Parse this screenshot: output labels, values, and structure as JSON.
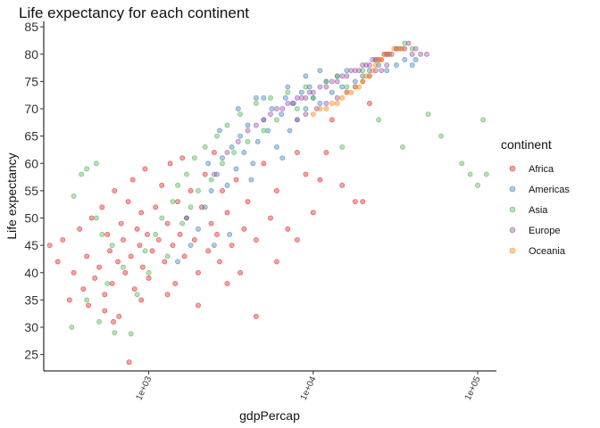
{
  "chart_data": {
    "type": "scatter",
    "title": "Life expectancy for each continent",
    "xlabel": "gdpPercap",
    "ylabel": "Life expectancy",
    "x_scale": "log10",
    "xlim": [
      230,
      130000
    ],
    "ylim": [
      22,
      86
    ],
    "x_ticks": [
      {
        "value": 1000,
        "label": "1e+03"
      },
      {
        "value": 10000,
        "label": "1e+04"
      },
      {
        "value": 100000,
        "label": "1e+05"
      }
    ],
    "y_ticks": [
      25,
      30,
      35,
      40,
      45,
      50,
      55,
      60,
      65,
      70,
      75,
      80,
      85
    ],
    "grid": false,
    "legend": {
      "title": "continent",
      "position": "right",
      "entries": [
        {
          "name": "Africa",
          "color": "#E41A1C"
        },
        {
          "name": "Americas",
          "color": "#377EB8"
        },
        {
          "name": "Asia",
          "color": "#4DAF4A"
        },
        {
          "name": "Europe",
          "color": "#984EA3"
        },
        {
          "name": "Oceania",
          "color": "#FF7F00"
        }
      ]
    },
    "point_opacity": 0.4,
    "series": [
      {
        "name": "Africa",
        "points": [
          [
            250,
            45
          ],
          [
            280,
            42
          ],
          [
            300,
            46
          ],
          [
            330,
            35
          ],
          [
            350,
            40
          ],
          [
            380,
            48
          ],
          [
            400,
            37
          ],
          [
            420,
            43
          ],
          [
            450,
            50
          ],
          [
            470,
            39
          ],
          [
            500,
            41
          ],
          [
            520,
            52
          ],
          [
            540,
            36
          ],
          [
            560,
            47
          ],
          [
            580,
            44
          ],
          [
            600,
            38
          ],
          [
            620,
            55
          ],
          [
            650,
            42
          ],
          [
            680,
            49
          ],
          [
            700,
            46
          ],
          [
            720,
            40
          ],
          [
            750,
            53
          ],
          [
            780,
            43
          ],
          [
            800,
            57
          ],
          [
            820,
            37
          ],
          [
            850,
            48
          ],
          [
            880,
            45
          ],
          [
            900,
            51
          ],
          [
            920,
            41
          ],
          [
            950,
            59
          ],
          [
            980,
            47
          ],
          [
            1000,
            39
          ],
          [
            1050,
            44
          ],
          [
            1100,
            52
          ],
          [
            1150,
            46
          ],
          [
            1200,
            56
          ],
          [
            1250,
            42
          ],
          [
            1300,
            49
          ],
          [
            1350,
            60
          ],
          [
            1400,
            45
          ],
          [
            1450,
            38
          ],
          [
            1500,
            53
          ],
          [
            1550,
            47
          ],
          [
            1600,
            61
          ],
          [
            1650,
            43
          ],
          [
            1700,
            50
          ],
          [
            1800,
            55
          ],
          [
            1900,
            46
          ],
          [
            2000,
            40
          ],
          [
            2100,
            52
          ],
          [
            2200,
            58
          ],
          [
            2300,
            44
          ],
          [
            2400,
            49
          ],
          [
            2500,
            62
          ],
          [
            2600,
            47
          ],
          [
            2700,
            42
          ],
          [
            2800,
            55
          ],
          [
            3000,
            51
          ],
          [
            3200,
            45
          ],
          [
            3400,
            57
          ],
          [
            3600,
            40
          ],
          [
            3800,
            48
          ],
          [
            4000,
            53
          ],
          [
            4500,
            46
          ],
          [
            5000,
            60
          ],
          [
            5500,
            50
          ],
          [
            6000,
            55
          ],
          [
            7000,
            48
          ],
          [
            8000,
            62
          ],
          [
            9000,
            58
          ],
          [
            10000,
            51
          ],
          [
            11000,
            57
          ],
          [
            12000,
            62
          ],
          [
            13000,
            68
          ],
          [
            15000,
            56
          ],
          [
            18000,
            53
          ],
          [
            22000,
            71
          ],
          [
            760,
            23.6
          ],
          [
            660,
            32
          ],
          [
            540,
            33
          ],
          [
            430,
            34
          ],
          [
            610,
            31
          ],
          [
            900,
            35
          ],
          [
            1300,
            36
          ],
          [
            2000,
            34
          ],
          [
            3000,
            38
          ],
          [
            4500,
            32
          ],
          [
            6000,
            42
          ],
          [
            8000,
            46
          ],
          [
            20000,
            53
          ]
        ]
      },
      {
        "name": "Americas",
        "points": [
          [
            1500,
            42
          ],
          [
            1800,
            45
          ],
          [
            2000,
            48
          ],
          [
            2200,
            52
          ],
          [
            2400,
            55
          ],
          [
            2600,
            58
          ],
          [
            2800,
            61
          ],
          [
            3000,
            56
          ],
          [
            3200,
            63
          ],
          [
            3400,
            59
          ],
          [
            3600,
            65
          ],
          [
            3800,
            62
          ],
          [
            4000,
            67
          ],
          [
            4300,
            60
          ],
          [
            4600,
            64
          ],
          [
            5000,
            68
          ],
          [
            5300,
            66
          ],
          [
            5600,
            70
          ],
          [
            6000,
            63
          ],
          [
            6400,
            69
          ],
          [
            6800,
            72
          ],
          [
            7200,
            66
          ],
          [
            7600,
            71
          ],
          [
            8000,
            68
          ],
          [
            8500,
            73
          ],
          [
            9000,
            70
          ],
          [
            9500,
            74
          ],
          [
            10000,
            72
          ],
          [
            11000,
            71
          ],
          [
            12000,
            75
          ],
          [
            13000,
            73
          ],
          [
            14000,
            76
          ],
          [
            15000,
            74
          ],
          [
            16000,
            77
          ],
          [
            18000,
            75
          ],
          [
            20000,
            76
          ],
          [
            22000,
            77
          ],
          [
            25000,
            78
          ],
          [
            28000,
            77
          ],
          [
            32000,
            78
          ],
          [
            36000,
            79
          ],
          [
            40000,
            78
          ],
          [
            42000,
            79
          ],
          [
            5000,
            72
          ],
          [
            7000,
            74
          ],
          [
            9000,
            76
          ],
          [
            11000,
            77
          ],
          [
            3500,
            70
          ],
          [
            4500,
            72
          ],
          [
            2700,
            66
          ],
          [
            2300,
            60
          ],
          [
            1700,
            50
          ],
          [
            3100,
            47
          ],
          [
            2500,
            45
          ],
          [
            4200,
            57
          ],
          [
            6500,
            61
          ]
        ]
      },
      {
        "name": "Asia",
        "points": [
          [
            340,
            30
          ],
          [
            420,
            35
          ],
          [
            500,
            31
          ],
          [
            560,
            38
          ],
          [
            620,
            29
          ],
          [
            700,
            41
          ],
          [
            780,
            28.8
          ],
          [
            850,
            36
          ],
          [
            950,
            44
          ],
          [
            1000,
            40
          ],
          [
            1100,
            47
          ],
          [
            1200,
            50
          ],
          [
            1300,
            43
          ],
          [
            1400,
            53
          ],
          [
            1500,
            56
          ],
          [
            1600,
            49
          ],
          [
            1700,
            58
          ],
          [
            1800,
            52
          ],
          [
            1900,
            61
          ],
          [
            2000,
            55
          ],
          [
            2200,
            63
          ],
          [
            2400,
            57
          ],
          [
            2600,
            65
          ],
          [
            2800,
            60
          ],
          [
            3000,
            67
          ],
          [
            3300,
            62
          ],
          [
            3600,
            69
          ],
          [
            4000,
            64
          ],
          [
            4500,
            71
          ],
          [
            5000,
            66
          ],
          [
            5500,
            72
          ],
          [
            6000,
            68
          ],
          [
            7000,
            73
          ],
          [
            8000,
            70
          ],
          [
            9000,
            74
          ],
          [
            10000,
            72
          ],
          [
            12000,
            75
          ],
          [
            14000,
            76
          ],
          [
            16000,
            74
          ],
          [
            20000,
            77
          ],
          [
            24000,
            79
          ],
          [
            28000,
            80
          ],
          [
            32000,
            81
          ],
          [
            36000,
            82
          ],
          [
            40000,
            81
          ],
          [
            15000,
            63
          ],
          [
            25000,
            68
          ],
          [
            35000,
            63
          ],
          [
            50000,
            69
          ],
          [
            60000,
            65
          ],
          [
            80000,
            60
          ],
          [
            90000,
            58
          ],
          [
            100000,
            56
          ],
          [
            108000,
            68
          ],
          [
            113000,
            58
          ],
          [
            420,
            59
          ],
          [
            480,
            60
          ],
          [
            350,
            54
          ],
          [
            390,
            58
          ],
          [
            520,
            47
          ],
          [
            600,
            45
          ],
          [
            480,
            50
          ]
        ]
      },
      {
        "name": "Europe",
        "points": [
          [
            2500,
            58
          ],
          [
            3000,
            62
          ],
          [
            3500,
            64
          ],
          [
            4000,
            66
          ],
          [
            4500,
            67
          ],
          [
            5000,
            68
          ],
          [
            5500,
            69
          ],
          [
            6000,
            70
          ],
          [
            6500,
            70
          ],
          [
            7000,
            71
          ],
          [
            7500,
            71
          ],
          [
            8000,
            72
          ],
          [
            8500,
            72
          ],
          [
            9000,
            72
          ],
          [
            9500,
            73
          ],
          [
            10000,
            73
          ],
          [
            11000,
            74
          ],
          [
            12000,
            74
          ],
          [
            13000,
            75
          ],
          [
            14000,
            75
          ],
          [
            15000,
            76
          ],
          [
            16000,
            76
          ],
          [
            17000,
            77
          ],
          [
            18000,
            77
          ],
          [
            19000,
            77
          ],
          [
            20000,
            78
          ],
          [
            21000,
            78
          ],
          [
            22000,
            78
          ],
          [
            23000,
            79
          ],
          [
            24000,
            79
          ],
          [
            25000,
            79
          ],
          [
            26000,
            79
          ],
          [
            27000,
            80
          ],
          [
            28000,
            80
          ],
          [
            29000,
            80
          ],
          [
            30000,
            80
          ],
          [
            32000,
            81
          ],
          [
            34000,
            81
          ],
          [
            36000,
            81
          ],
          [
            38000,
            82
          ],
          [
            40000,
            80
          ],
          [
            42000,
            81
          ],
          [
            45000,
            80
          ],
          [
            49000,
            80
          ],
          [
            12000,
            71
          ],
          [
            14000,
            72
          ],
          [
            16000,
            73
          ],
          [
            18000,
            74
          ],
          [
            20000,
            75
          ],
          [
            22000,
            76
          ],
          [
            24000,
            77
          ],
          [
            26000,
            77
          ],
          [
            28000,
            78
          ],
          [
            9000,
            69
          ],
          [
            10500,
            70
          ],
          [
            8000,
            68
          ]
        ]
      },
      {
        "name": "Oceania",
        "points": [
          [
            10000,
            69
          ],
          [
            11000,
            70
          ],
          [
            12000,
            70
          ],
          [
            13000,
            71
          ],
          [
            14000,
            71
          ],
          [
            15000,
            72
          ],
          [
            16000,
            73
          ],
          [
            17000,
            73
          ],
          [
            18000,
            74
          ],
          [
            19000,
            74
          ],
          [
            20000,
            75
          ],
          [
            21000,
            76
          ],
          [
            22000,
            76
          ],
          [
            23000,
            77
          ],
          [
            24000,
            78
          ],
          [
            25000,
            79
          ],
          [
            26000,
            79
          ],
          [
            27000,
            80
          ],
          [
            29000,
            80
          ],
          [
            31000,
            81
          ],
          [
            33000,
            81
          ],
          [
            35000,
            81
          ]
        ]
      }
    ]
  }
}
